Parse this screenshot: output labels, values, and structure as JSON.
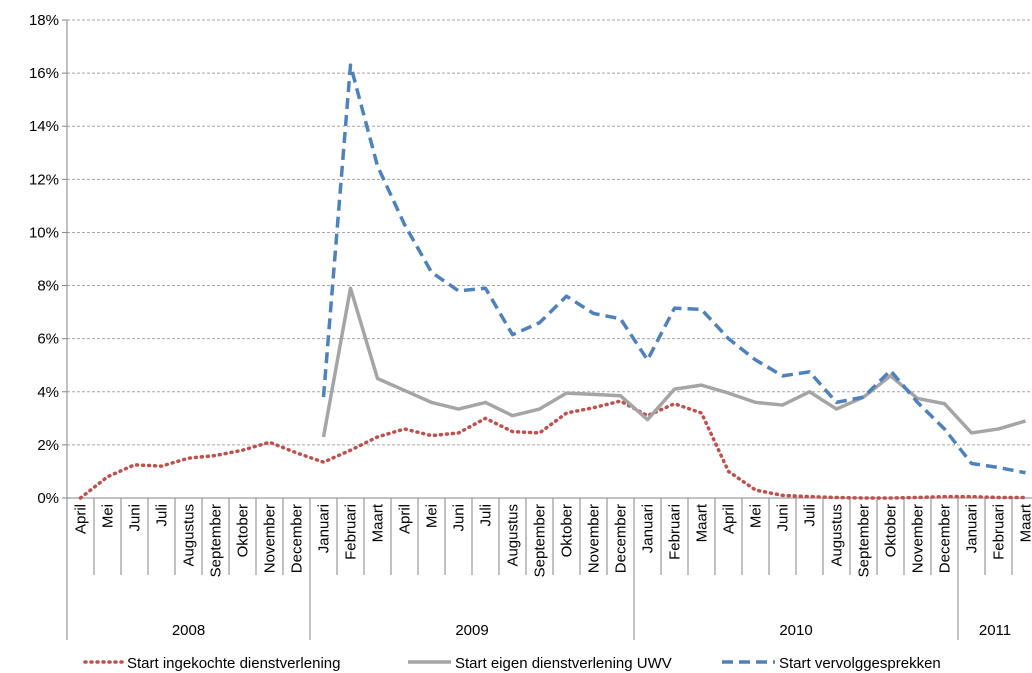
{
  "chart_data": {
    "type": "line",
    "categories": [
      "April",
      "Mei",
      "Juni",
      "Juli",
      "Augustus",
      "September",
      "Oktober",
      "November",
      "December",
      "Januari",
      "Februari",
      "Maart",
      "April",
      "Mei",
      "Juni",
      "Juli",
      "Augustus",
      "September",
      "Oktober",
      "November",
      "December",
      "Januari",
      "Februari",
      "Maart",
      "April",
      "Mei",
      "Juni",
      "Juli",
      "Augustus",
      "September",
      "Oktober",
      "November",
      "December",
      "Januari",
      "Februari",
      "Maart"
    ],
    "category_groups": [
      {
        "label": "2008",
        "size": 9
      },
      {
        "label": "2009",
        "size": 12
      },
      {
        "label": "2010",
        "size": 12
      },
      {
        "label": "2011",
        "size": 3
      }
    ],
    "series": [
      {
        "name": "Start ingekochte dienstverlening",
        "color": "#c0504d",
        "style": "dotted",
        "values": [
          0,
          0.8,
          1.25,
          1.2,
          1.5,
          1.6,
          1.8,
          2.1,
          1.7,
          1.35,
          1.8,
          2.3,
          2.6,
          2.35,
          2.45,
          3.0,
          2.5,
          2.45,
          3.2,
          3.4,
          3.65,
          3.1,
          3.55,
          3.2,
          1.0,
          0.3,
          0.1,
          0.05,
          0.02,
          0,
          0,
          0.02,
          0.05,
          0.05,
          0.02,
          0.02
        ]
      },
      {
        "name": "Start eigen dienstverlening UWV",
        "color": "#a5a5a5",
        "style": "solid",
        "values": [
          null,
          null,
          null,
          null,
          null,
          null,
          null,
          null,
          null,
          2.3,
          7.9,
          4.5,
          4.05,
          3.6,
          3.35,
          3.6,
          3.1,
          3.35,
          3.95,
          3.9,
          3.85,
          2.95,
          4.1,
          4.25,
          3.95,
          3.6,
          3.5,
          4.0,
          3.35,
          3.8,
          4.6,
          3.75,
          3.55,
          2.45,
          2.6,
          2.9
        ]
      },
      {
        "name": "Start vervolggesprekken",
        "color": "#4f81bd",
        "style": "dashed",
        "values": [
          null,
          null,
          null,
          null,
          null,
          null,
          null,
          null,
          null,
          3.8,
          16.3,
          12.5,
          10.3,
          8.5,
          7.8,
          7.9,
          6.15,
          6.6,
          7.6,
          6.95,
          6.75,
          5.2,
          7.15,
          7.1,
          6.0,
          5.2,
          4.6,
          4.75,
          3.6,
          3.8,
          4.8,
          3.6,
          2.6,
          1.3,
          1.15,
          0.95
        ]
      }
    ],
    "ylim": [
      0,
      18
    ],
    "yticks": [
      {
        "value": 0,
        "label": "0%"
      },
      {
        "value": 2,
        "label": "2%"
      },
      {
        "value": 4,
        "label": "4%"
      },
      {
        "value": 6,
        "label": "6%"
      },
      {
        "value": 8,
        "label": "8%"
      },
      {
        "value": 10,
        "label": "10%"
      },
      {
        "value": 12,
        "label": "12%"
      },
      {
        "value": 14,
        "label": "14%"
      },
      {
        "value": 16,
        "label": "16%"
      },
      {
        "value": 18,
        "label": "18%"
      }
    ],
    "grid": true,
    "legend": "bottom"
  }
}
